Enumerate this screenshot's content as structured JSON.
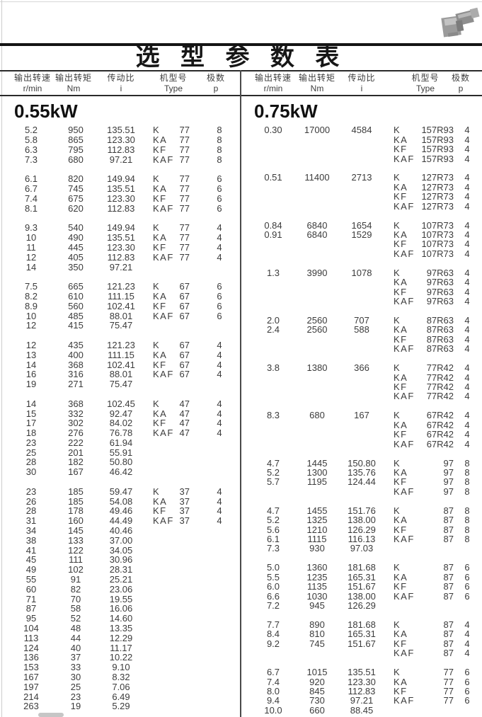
{
  "title": "选 型 参 数 表",
  "header": {
    "cols": [
      {
        "cn": "输出转速",
        "en": "r/min"
      },
      {
        "cn": "输出转矩",
        "en": "Nm"
      },
      {
        "cn": "传动比",
        "en": "i"
      },
      {
        "cn": "机型号",
        "en": "Type"
      },
      {
        "cn": "极数",
        "en": "p"
      }
    ]
  },
  "images": {
    "gearmotor_photo": "gearmotor-product-photo"
  },
  "panels": [
    {
      "power": "0.55kW",
      "groups": [
        {
          "rows": [
            [
              "5.2",
              "950",
              "135.51",
              "K",
              "77",
              "8"
            ],
            [
              "5.8",
              "865",
              "123.30",
              "KA",
              "77",
              "8"
            ],
            [
              "6.3",
              "795",
              "112.83",
              "KF",
              "77",
              "8"
            ],
            [
              "7.3",
              "680",
              "97.21",
              "KAF",
              "77",
              "8"
            ]
          ]
        },
        {
          "rows": [
            [
              "6.1",
              "820",
              "149.94",
              "K",
              "77",
              "6"
            ],
            [
              "6.7",
              "745",
              "135.51",
              "KA",
              "77",
              "6"
            ],
            [
              "7.4",
              "675",
              "123.30",
              "KF",
              "77",
              "6"
            ],
            [
              "8.1",
              "620",
              "112.83",
              "KAF",
              "77",
              "6"
            ]
          ]
        },
        {
          "rows": [
            [
              "9.3",
              "540",
              "149.94",
              "K",
              "77",
              "4"
            ],
            [
              "10",
              "490",
              "135.51",
              "KA",
              "77",
              "4"
            ],
            [
              "11",
              "445",
              "123.30",
              "KF",
              "77",
              "4"
            ],
            [
              "12",
              "405",
              "112.83",
              "KAF",
              "77",
              "4"
            ],
            [
              "14",
              "350",
              "97.21",
              "",
              "",
              ""
            ]
          ]
        },
        {
          "rows": [
            [
              "7.5",
              "665",
              "121.23",
              "K",
              "67",
              "6"
            ],
            [
              "8.2",
              "610",
              "111.15",
              "KA",
              "67",
              "6"
            ],
            [
              "8.9",
              "560",
              "102.41",
              "KF",
              "67",
              "6"
            ],
            [
              "10",
              "485",
              "88.01",
              "KAF",
              "67",
              "6"
            ],
            [
              "12",
              "415",
              "75.47",
              "",
              "",
              ""
            ]
          ]
        },
        {
          "rows": [
            [
              "12",
              "435",
              "121.23",
              "K",
              "67",
              "4"
            ],
            [
              "13",
              "400",
              "111.15",
              "KA",
              "67",
              "4"
            ],
            [
              "14",
              "368",
              "102.41",
              "KF",
              "67",
              "4"
            ],
            [
              "16",
              "316",
              "88.01",
              "KAF",
              "67",
              "4"
            ],
            [
              "19",
              "271",
              "75.47",
              "",
              "",
              ""
            ]
          ]
        },
        {
          "rows": [
            [
              "14",
              "368",
              "102.45",
              "K",
              "47",
              "4"
            ],
            [
              "15",
              "332",
              "92.47",
              "KA",
              "47",
              "4"
            ],
            [
              "17",
              "302",
              "84.02",
              "KF",
              "47",
              "4"
            ],
            [
              "18",
              "276",
              "76.78",
              "KAF",
              "47",
              "4"
            ],
            [
              "23",
              "222",
              "61.94",
              "",
              "",
              ""
            ],
            [
              "25",
              "201",
              "55.91",
              "",
              "",
              ""
            ],
            [
              "28",
              "182",
              "50.80",
              "",
              "",
              ""
            ],
            [
              "30",
              "167",
              "46.42",
              "",
              "",
              ""
            ]
          ]
        },
        {
          "rows": [
            [
              "23",
              "185",
              "59.47",
              "K",
              "37",
              "4"
            ],
            [
              "26",
              "185",
              "54.08",
              "KA",
              "37",
              "4"
            ],
            [
              "28",
              "178",
              "49.46",
              "KF",
              "37",
              "4"
            ],
            [
              "31",
              "160",
              "44.49",
              "KAF",
              "37",
              "4"
            ],
            [
              "34",
              "145",
              "40.46",
              "",
              "",
              ""
            ],
            [
              "38",
              "133",
              "37.00",
              "",
              "",
              ""
            ],
            [
              "41",
              "122",
              "34.05",
              "",
              "",
              ""
            ],
            [
              "45",
              "111",
              "30.96",
              "",
              "",
              ""
            ],
            [
              "49",
              "102",
              "28.31",
              "",
              "",
              ""
            ],
            [
              "55",
              "91",
              "25.21",
              "",
              "",
              ""
            ],
            [
              "60",
              "82",
              "23.06",
              "",
              "",
              ""
            ],
            [
              "71",
              "70",
              "19.55",
              "",
              "",
              ""
            ],
            [
              "87",
              "58",
              "16.06",
              "",
              "",
              ""
            ],
            [
              "95",
              "52",
              "14.60",
              "",
              "",
              ""
            ],
            [
              "104",
              "48",
              "13.35",
              "",
              "",
              ""
            ],
            [
              "113",
              "44",
              "12.29",
              "",
              "",
              ""
            ],
            [
              "124",
              "40",
              "11.17",
              "",
              "",
              ""
            ],
            [
              "136",
              "37",
              "10.22",
              "",
              "",
              ""
            ],
            [
              "153",
              "33",
              "9.10",
              "",
              "",
              ""
            ],
            [
              "167",
              "30",
              "8.32",
              "",
              "",
              ""
            ],
            [
              "197",
              "25",
              "7.06",
              "",
              "",
              ""
            ],
            [
              "214",
              "23",
              "6.49",
              "",
              "",
              ""
            ],
            [
              "263",
              "19",
              "5.29",
              "",
              "",
              ""
            ]
          ]
        }
      ]
    },
    {
      "power": "0.75kW",
      "groups": [
        {
          "rows": [
            [
              "0.30",
              "17000",
              "4584",
              "K",
              "157R93",
              "4"
            ],
            [
              "",
              "",
              "",
              "KA",
              "157R93",
              "4"
            ],
            [
              "",
              "",
              "",
              "KF",
              "157R93",
              "4"
            ],
            [
              "",
              "",
              "",
              "KAF",
              "157R93",
              "4"
            ]
          ]
        },
        {
          "rows": [
            [
              "0.51",
              "11400",
              "2713",
              "K",
              "127R73",
              "4"
            ],
            [
              "",
              "",
              "",
              "KA",
              "127R73",
              "4"
            ],
            [
              "",
              "",
              "",
              "KF",
              "127R73",
              "4"
            ],
            [
              "",
              "",
              "",
              "KAF",
              "127R73",
              "4"
            ]
          ]
        },
        {
          "rows": [
            [
              "0.84",
              "6840",
              "1654",
              "K",
              "107R73",
              "4"
            ],
            [
              "0.91",
              "6840",
              "1529",
              "KA",
              "107R73",
              "4"
            ],
            [
              "",
              "",
              "",
              "KF",
              "107R73",
              "4"
            ],
            [
              "",
              "",
              "",
              "KAF",
              "107R73",
              "4"
            ]
          ]
        },
        {
          "rows": [
            [
              "1.3",
              "3990",
              "1078",
              "K",
              "97R63",
              "4"
            ],
            [
              "",
              "",
              "",
              "KA",
              "97R63",
              "4"
            ],
            [
              "",
              "",
              "",
              "KF",
              "97R63",
              "4"
            ],
            [
              "",
              "",
              "",
              "KAF",
              "97R63",
              "4"
            ]
          ]
        },
        {
          "rows": [
            [
              "2.0",
              "2560",
              "707",
              "K",
              "87R63",
              "4"
            ],
            [
              "2.4",
              "2560",
              "588",
              "KA",
              "87R63",
              "4"
            ],
            [
              "",
              "",
              "",
              "KF",
              "87R63",
              "4"
            ],
            [
              "",
              "",
              "",
              "KAF",
              "87R63",
              "4"
            ]
          ]
        },
        {
          "rows": [
            [
              "3.8",
              "1380",
              "366",
              "K",
              "77R42",
              "4"
            ],
            [
              "",
              "",
              "",
              "KA",
              "77R42",
              "4"
            ],
            [
              "",
              "",
              "",
              "KF",
              "77R42",
              "4"
            ],
            [
              "",
              "",
              "",
              "KAF",
              "77R42",
              "4"
            ]
          ]
        },
        {
          "rows": [
            [
              "8.3",
              "680",
              "167",
              "K",
              "67R42",
              "4"
            ],
            [
              "",
              "",
              "",
              "KA",
              "67R42",
              "4"
            ],
            [
              "",
              "",
              "",
              "KF",
              "67R42",
              "4"
            ],
            [
              "",
              "",
              "",
              "KAF",
              "67R42",
              "4"
            ]
          ]
        },
        {
          "rows": [
            [
              "4.7",
              "1445",
              "150.80",
              "K",
              "97",
              "8"
            ],
            [
              "5.2",
              "1300",
              "135.76",
              "KA",
              "97",
              "8"
            ],
            [
              "5.7",
              "1195",
              "124.44",
              "KF",
              "97",
              "8"
            ],
            [
              "",
              "",
              "",
              "KAF",
              "97",
              "8"
            ]
          ]
        },
        {
          "rows": [
            [
              "4.7",
              "1455",
              "151.76",
              "K",
              "87",
              "8"
            ],
            [
              "5.2",
              "1325",
              "138.00",
              "KA",
              "87",
              "8"
            ],
            [
              "5.6",
              "1210",
              "126.29",
              "KF",
              "87",
              "8"
            ],
            [
              "6.1",
              "1115",
              "116.13",
              "KAF",
              "87",
              "8"
            ],
            [
              "7.3",
              "930",
              "97.03",
              "",
              "",
              ""
            ]
          ]
        },
        {
          "rows": [
            [
              "5.0",
              "1360",
              "181.68",
              "K",
              "87",
              "6"
            ],
            [
              "5.5",
              "1235",
              "165.31",
              "KA",
              "87",
              "6"
            ],
            [
              "6.0",
              "1135",
              "151.67",
              "KF",
              "87",
              "6"
            ],
            [
              "6.6",
              "1030",
              "138.00",
              "KAF",
              "87",
              "6"
            ],
            [
              "7.2",
              "945",
              "126.29",
              "",
              "",
              ""
            ]
          ]
        },
        {
          "rows": [
            [
              "7.7",
              "890",
              "181.68",
              "K",
              "87",
              "4"
            ],
            [
              "8.4",
              "810",
              "165.31",
              "KA",
              "87",
              "4"
            ],
            [
              "9.2",
              "745",
              "151.67",
              "KF",
              "87",
              "4"
            ],
            [
              "",
              "",
              "",
              "KAF",
              "87",
              "4"
            ]
          ]
        },
        {
          "rows": [
            [
              "6.7",
              "1015",
              "135.51",
              "K",
              "77",
              "6"
            ],
            [
              "7.4",
              "920",
              "123.30",
              "KA",
              "77",
              "6"
            ],
            [
              "8.0",
              "845",
              "112.83",
              "KF",
              "77",
              "6"
            ],
            [
              "9.4",
              "730",
              "97.21",
              "KAF",
              "77",
              "6"
            ],
            [
              "10.0",
              "660",
              "88.45",
              "",
              "",
              ""
            ]
          ]
        }
      ]
    }
  ]
}
